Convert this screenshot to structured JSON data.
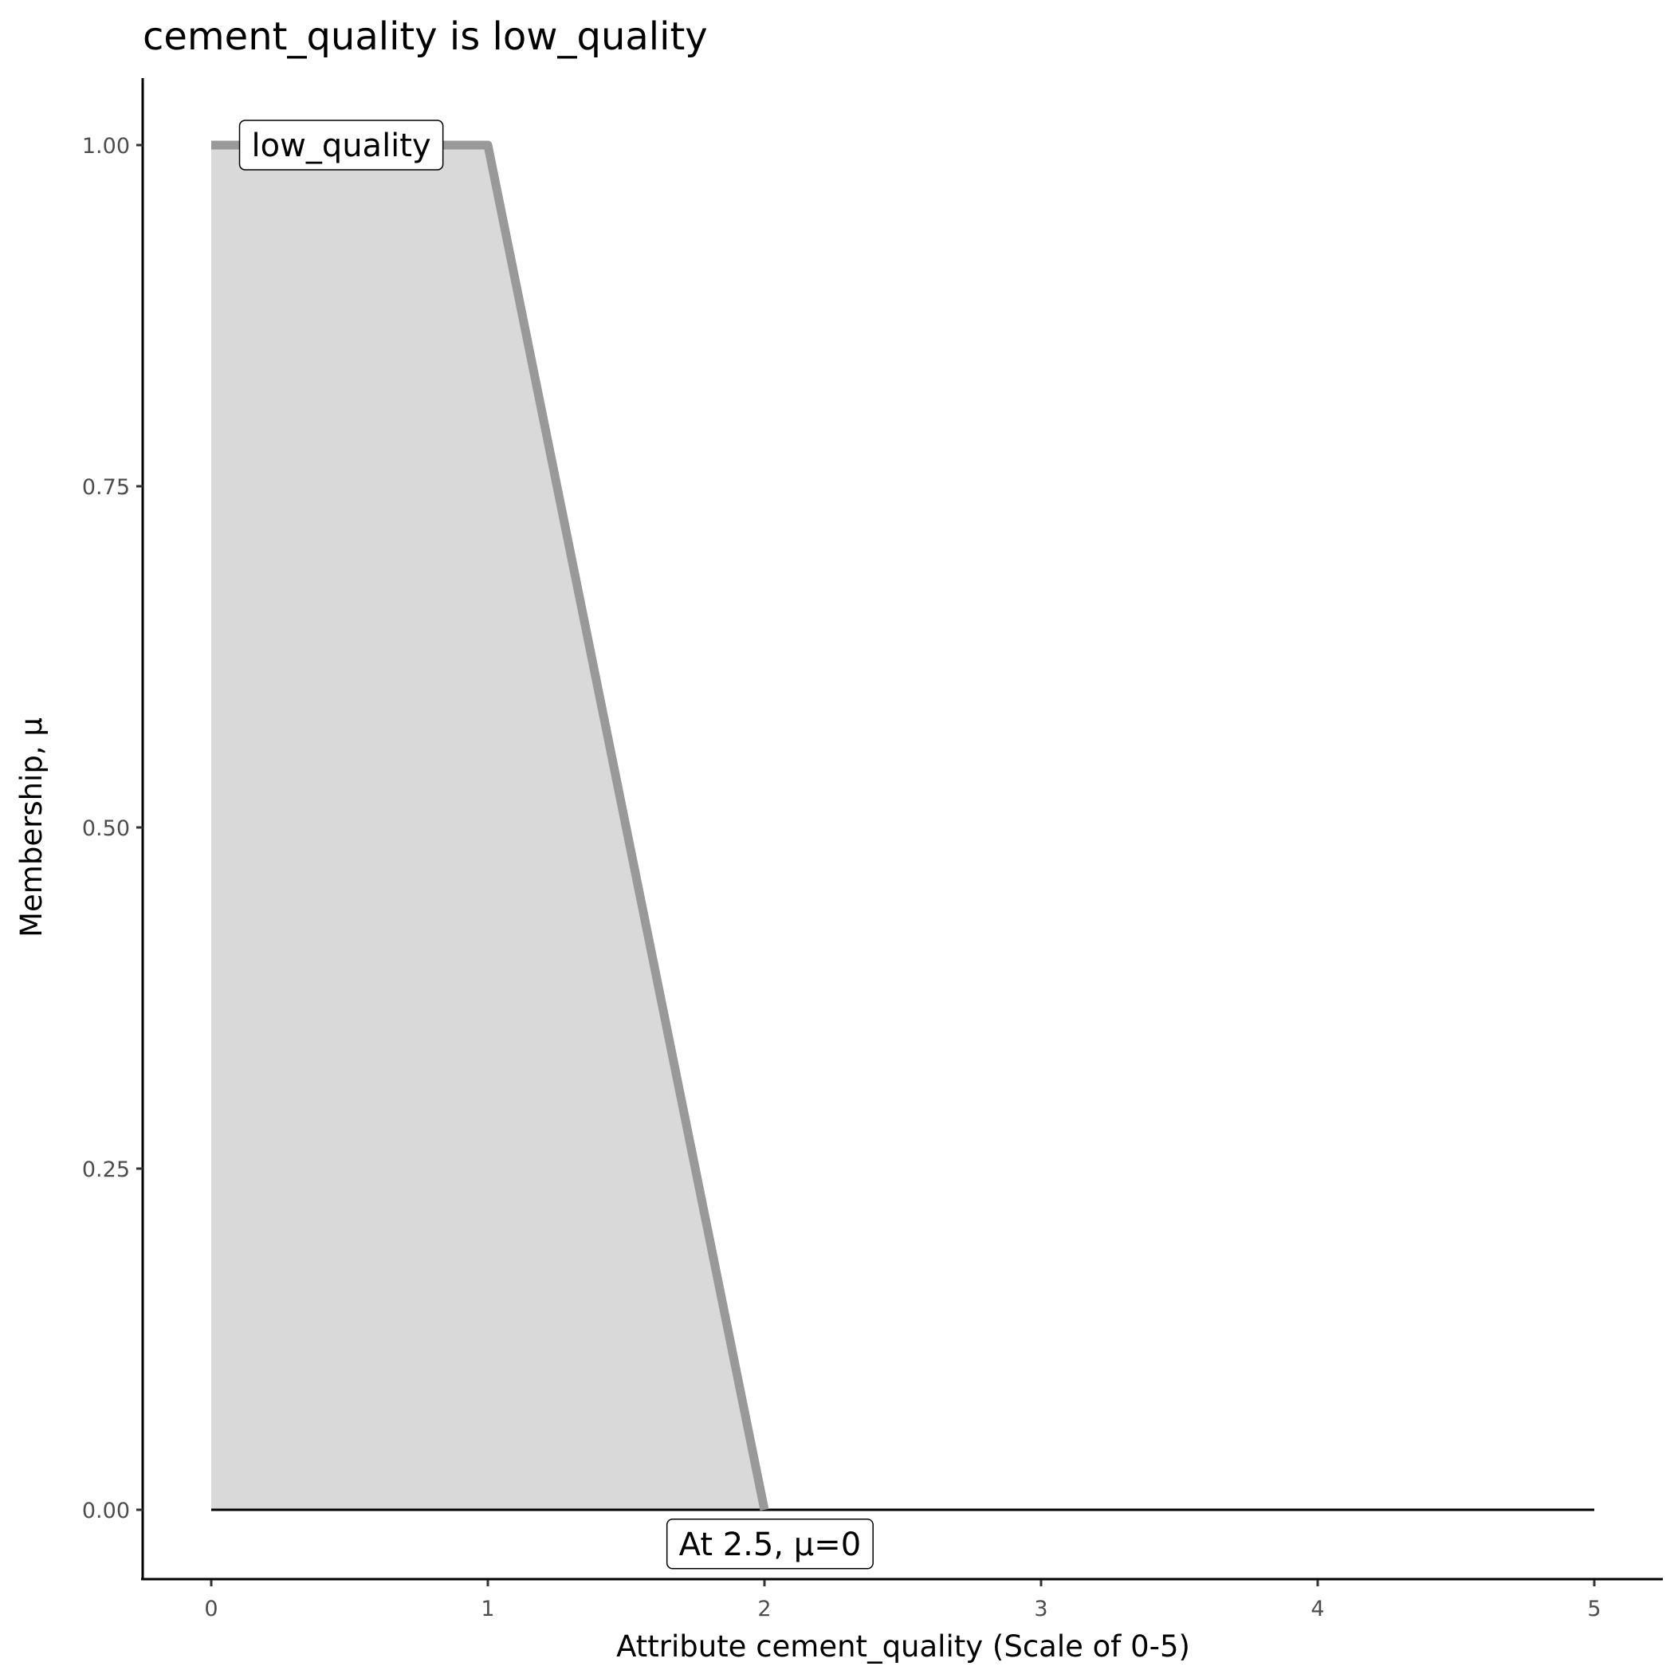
{
  "chart_data": {
    "type": "area",
    "title": "cement_quality is low_quality",
    "xlabel": "Attribute cement_quality (Scale of 0-5)",
    "ylabel": "Membership, μ",
    "xlim": [
      -0.25,
      5.25
    ],
    "ylim": [
      -0.05,
      1.05
    ],
    "x_ticks": [
      "0",
      "1",
      "2",
      "3",
      "4",
      "5"
    ],
    "y_ticks": [
      "0.00",
      "0.25",
      "0.50",
      "0.75",
      "1.00"
    ],
    "grid": false,
    "series": [
      {
        "name": "low_quality",
        "x": [
          0,
          1,
          2
        ],
        "y": [
          1,
          1,
          0
        ],
        "fill": "#d9d9d9",
        "line_color": "#999999"
      }
    ],
    "baseline": {
      "x": [
        0,
        5
      ],
      "y": [
        0,
        0
      ],
      "color": "#000000"
    },
    "annotations": [
      {
        "text": "low_quality",
        "x": 0.47,
        "y": 1.0
      },
      {
        "text": "At 2.5, μ=0",
        "x": 2.02,
        "y": -0.025
      }
    ]
  }
}
